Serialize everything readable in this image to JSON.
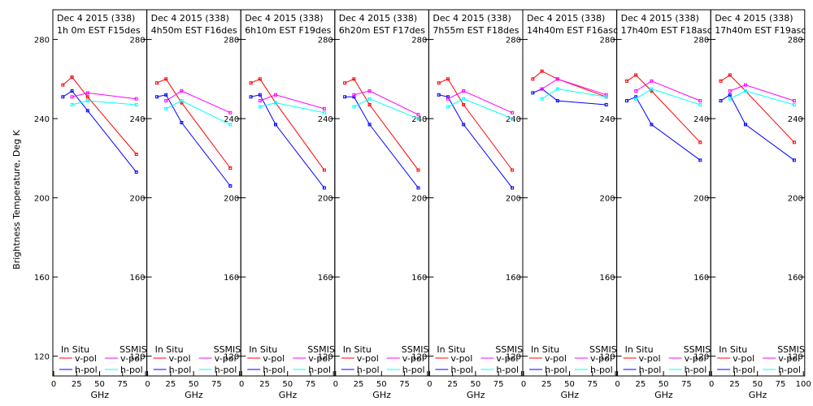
{
  "chart_data": {
    "type": "line",
    "ylabel": "Brightness Temperature, Deg K",
    "xlabel": "GHz",
    "xlim": [
      0,
      100
    ],
    "ylim": [
      110,
      295
    ],
    "xticks": [
      0,
      25,
      50,
      75,
      100
    ],
    "xtick_labels": [
      "0",
      "25",
      "50",
      "75",
      "100"
    ],
    "yticks": [
      120,
      160,
      200,
      240,
      280
    ],
    "ytick_labels": [
      "120",
      "160",
      "200",
      "240",
      "280"
    ],
    "legend": {
      "insitu_title": "In Situ",
      "ssmis_title": "SSMIS",
      "v_label": "v-pol",
      "h_label": "h-pol"
    },
    "colors": {
      "insitu_v": "#ff0000",
      "insitu_h": "#0000ff",
      "ssmis_v": "#ff00ff",
      "ssmis_h": "#00ffff"
    },
    "panels": [
      {
        "title1": "Dec 4 2015 (338)",
        "title2": "1h 0m  EST F15des",
        "insitu_v": {
          "x": [
            10,
            20,
            37,
            90
          ],
          "y": [
            257,
            261,
            251,
            222
          ]
        },
        "insitu_h": {
          "x": [
            10,
            20,
            37,
            90
          ],
          "y": [
            251,
            254,
            244,
            213
          ]
        },
        "ssmis_v": {
          "x": [
            20,
            37,
            90
          ],
          "y": [
            251,
            253,
            250
          ]
        },
        "ssmis_h": {
          "x": [
            20,
            37,
            90
          ],
          "y": [
            247,
            249,
            247
          ]
        }
      },
      {
        "title1": "Dec 4 2015 (338)",
        "title2": "4h50m  EST F16des",
        "insitu_v": {
          "x": [
            10,
            20,
            37,
            90
          ],
          "y": [
            258,
            260,
            248,
            215
          ]
        },
        "insitu_h": {
          "x": [
            10,
            20,
            37,
            90
          ],
          "y": [
            251,
            252,
            238,
            206
          ]
        },
        "ssmis_v": {
          "x": [
            20,
            37,
            90
          ],
          "y": [
            249,
            254,
            243
          ]
        },
        "ssmis_h": {
          "x": [
            20,
            37,
            90
          ],
          "y": [
            245,
            249,
            237
          ]
        }
      },
      {
        "title1": "Dec 4 2015 (338)",
        "title2": "6h10m  EST F19des",
        "insitu_v": {
          "x": [
            10,
            20,
            37,
            90
          ],
          "y": [
            258,
            260,
            248,
            214
          ]
        },
        "insitu_h": {
          "x": [
            10,
            20,
            37,
            90
          ],
          "y": [
            251,
            252,
            237,
            205
          ]
        },
        "ssmis_v": {
          "x": [
            20,
            37,
            90
          ],
          "y": [
            249,
            252,
            245
          ]
        },
        "ssmis_h": {
          "x": [
            20,
            37,
            90
          ],
          "y": [
            246,
            248,
            243
          ]
        }
      },
      {
        "title1": "Dec 4 2015 (338)",
        "title2": "6h20m  EST F17des",
        "insitu_v": {
          "x": [
            10,
            20,
            37,
            90
          ],
          "y": [
            258,
            260,
            247,
            214
          ]
        },
        "insitu_h": {
          "x": [
            10,
            20,
            37,
            90
          ],
          "y": [
            251,
            251,
            237,
            205
          ]
        },
        "ssmis_v": {
          "x": [
            20,
            37,
            90
          ],
          "y": [
            252,
            254,
            242
          ]
        },
        "ssmis_h": {
          "x": [
            20,
            37,
            90
          ],
          "y": [
            246,
            250,
            240
          ]
        }
      },
      {
        "title1": "Dec 4 2015 (338)",
        "title2": "7h55m  EST F18des",
        "insitu_v": {
          "x": [
            10,
            20,
            37,
            90
          ],
          "y": [
            258,
            260,
            247,
            214
          ]
        },
        "insitu_h": {
          "x": [
            10,
            20,
            37,
            90
          ],
          "y": [
            252,
            251,
            237,
            205
          ]
        },
        "ssmis_v": {
          "x": [
            20,
            37,
            90
          ],
          "y": [
            250,
            254,
            243
          ]
        },
        "ssmis_h": {
          "x": [
            20,
            37,
            90
          ],
          "y": [
            246,
            250,
            240
          ]
        }
      },
      {
        "title1": "Dec 4 2015 (338)",
        "title2": "14h40m  EST F16asc",
        "insitu_v": {
          "x": [
            10,
            20,
            37,
            90
          ],
          "y": [
            260,
            264,
            260,
            251
          ]
        },
        "insitu_h": {
          "x": [
            10,
            20,
            37,
            90
          ],
          "y": [
            253,
            255,
            249,
            247
          ]
        },
        "ssmis_v": {
          "x": [
            20,
            37,
            90
          ],
          "y": [
            255,
            260,
            252
          ]
        },
        "ssmis_h": {
          "x": [
            20,
            37,
            90
          ],
          "y": [
            250,
            255,
            251
          ]
        }
      },
      {
        "title1": "Dec 4 2015 (338)",
        "title2": "17h40m  EST F18asc",
        "insitu_v": {
          "x": [
            10,
            20,
            37,
            90
          ],
          "y": [
            259,
            262,
            254,
            228
          ]
        },
        "insitu_h": {
          "x": [
            10,
            20,
            37,
            90
          ],
          "y": [
            249,
            251,
            237,
            219
          ]
        },
        "ssmis_v": {
          "x": [
            20,
            37,
            90
          ],
          "y": [
            254,
            259,
            249
          ]
        },
        "ssmis_h": {
          "x": [
            20,
            37,
            90
          ],
          "y": [
            250,
            255,
            247
          ]
        }
      },
      {
        "title1": "Dec 4 2015 (338)",
        "title2": "17h40m  EST F19asc",
        "insitu_v": {
          "x": [
            10,
            20,
            37,
            90
          ],
          "y": [
            259,
            262,
            254,
            228
          ]
        },
        "insitu_h": {
          "x": [
            10,
            20,
            37,
            90
          ],
          "y": [
            249,
            252,
            237,
            219
          ]
        },
        "ssmis_v": {
          "x": [
            20,
            37,
            90
          ],
          "y": [
            254,
            257,
            249
          ]
        },
        "ssmis_h": {
          "x": [
            20,
            37,
            90
          ],
          "y": [
            250,
            254,
            247
          ]
        }
      }
    ]
  }
}
